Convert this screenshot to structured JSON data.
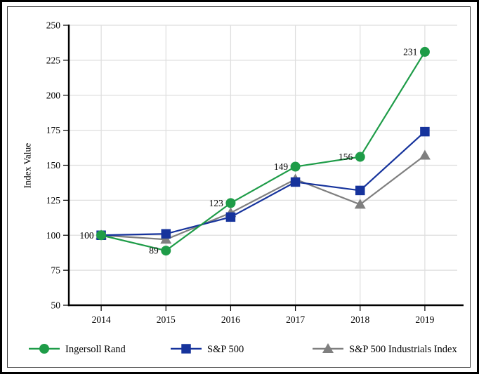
{
  "chart_data": {
    "type": "line",
    "title": "",
    "xlabel": "",
    "ylabel": "Index Value",
    "x": [
      "2014",
      "2015",
      "2016",
      "2017",
      "2018",
      "2019"
    ],
    "ylim": [
      50,
      250
    ],
    "ytick_step": 25,
    "yticks": [
      50,
      75,
      100,
      125,
      150,
      175,
      200,
      225,
      250
    ],
    "grid": true,
    "legend_position": "bottom",
    "series": [
      {
        "name": "Ingersoll Rand",
        "color": "#1e9c48",
        "marker": "circle",
        "values": [
          100,
          89,
          123,
          149,
          156,
          231
        ],
        "point_labels": [
          "100",
          "89",
          "123",
          "149",
          "156",
          "231"
        ]
      },
      {
        "name": "S&P 500",
        "color": "#16339c",
        "marker": "square",
        "values": [
          100,
          101,
          113,
          138,
          132,
          174
        ],
        "point_labels": []
      },
      {
        "name": "S&P 500 Industrials Index",
        "color": "#7f7f7f",
        "marker": "triangle",
        "values": [
          100,
          97,
          116,
          140,
          122,
          157
        ],
        "point_labels": []
      }
    ]
  },
  "colors": {
    "grid": "#dedede",
    "axis": "#000000",
    "text": "#000000",
    "background": "#ffffff",
    "outer_border": "#000000",
    "inner_border": "#3c3c3c"
  }
}
